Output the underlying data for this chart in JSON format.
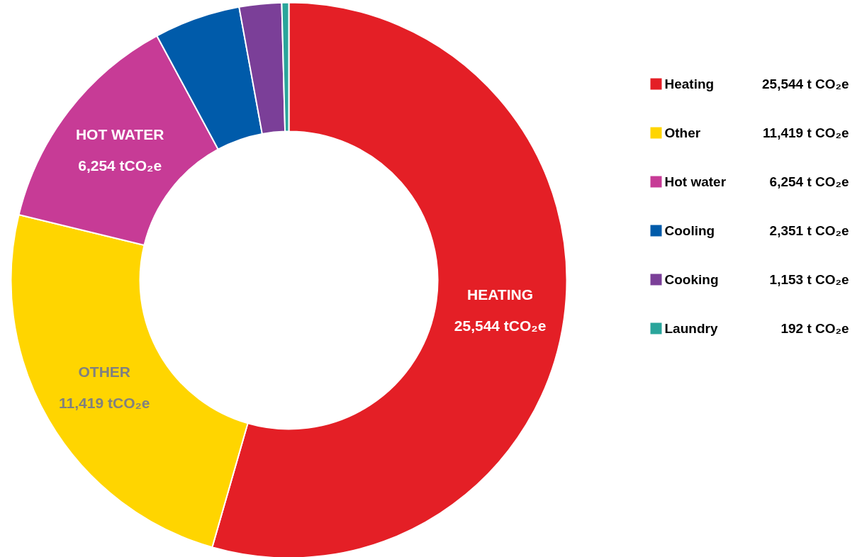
{
  "chart_data": {
    "type": "donut",
    "categories": [
      "Heating",
      "Other",
      "Hot water",
      "Cooling",
      "Cooking",
      "Laundry"
    ],
    "values": [
      25544,
      11419,
      6254,
      2351,
      1153,
      192
    ],
    "colors": [
      "#e41f26",
      "#ffd500",
      "#c73b96",
      "#005baa",
      "#7b3f98",
      "#2aa59b"
    ],
    "value_labels": [
      "25,544 t CO₂e",
      "11,419 t CO₂e",
      "6,254 t CO₂e",
      "2,351 t CO₂e",
      "1,153 t CO₂e",
      "192 t CO₂e"
    ],
    "annotations": [
      "HEATING\n25,544 tCO₂e",
      "OTHER\n11,419 tCO₂e",
      "HOT WATER\n6,254 tCO₂e"
    ],
    "legend": "right"
  }
}
